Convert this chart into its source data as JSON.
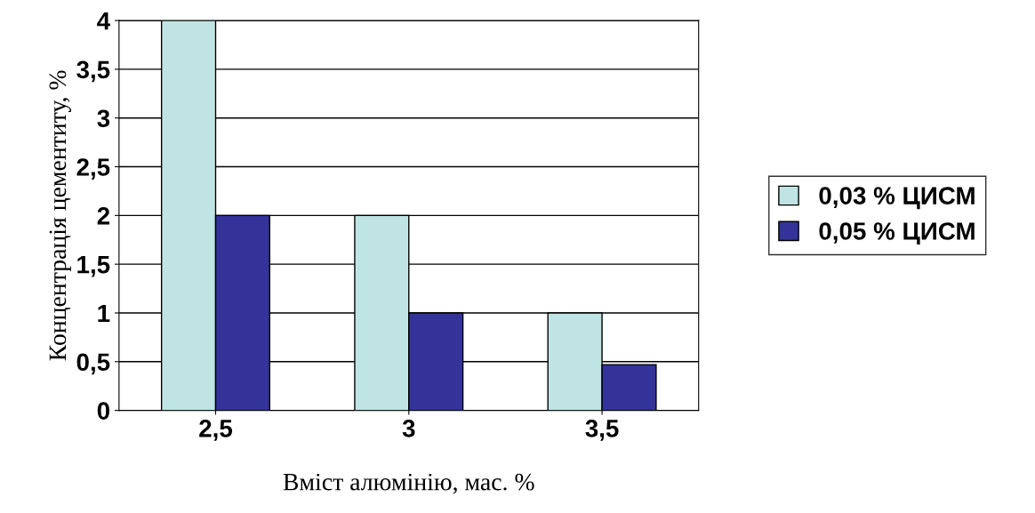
{
  "chart_data": {
    "type": "bar",
    "xlabel": "Вміст алюмінію, мас. %",
    "ylabel": "Концентрація цементиту, %",
    "categories": [
      "2,5",
      "3",
      "3,5"
    ],
    "series": [
      {
        "name": "0,03 % ЦИСМ",
        "color": "#c0e4e4",
        "values": [
          4,
          2,
          1
        ]
      },
      {
        "name": "0,05 % ЦИСМ",
        "color": "#333399",
        "values": [
          2,
          1,
          0.47
        ]
      }
    ],
    "ylim": [
      0,
      4
    ],
    "yticks": [
      0,
      {
        "value": 0.5,
        "label": "0,5"
      },
      1,
      {
        "value": 1.5,
        "label": "1,5"
      },
      2,
      {
        "value": 2.5,
        "label": "2,5"
      },
      3,
      {
        "value": 3.5,
        "label": "3,5"
      },
      4
    ],
    "grid": "y",
    "legend": "right"
  }
}
